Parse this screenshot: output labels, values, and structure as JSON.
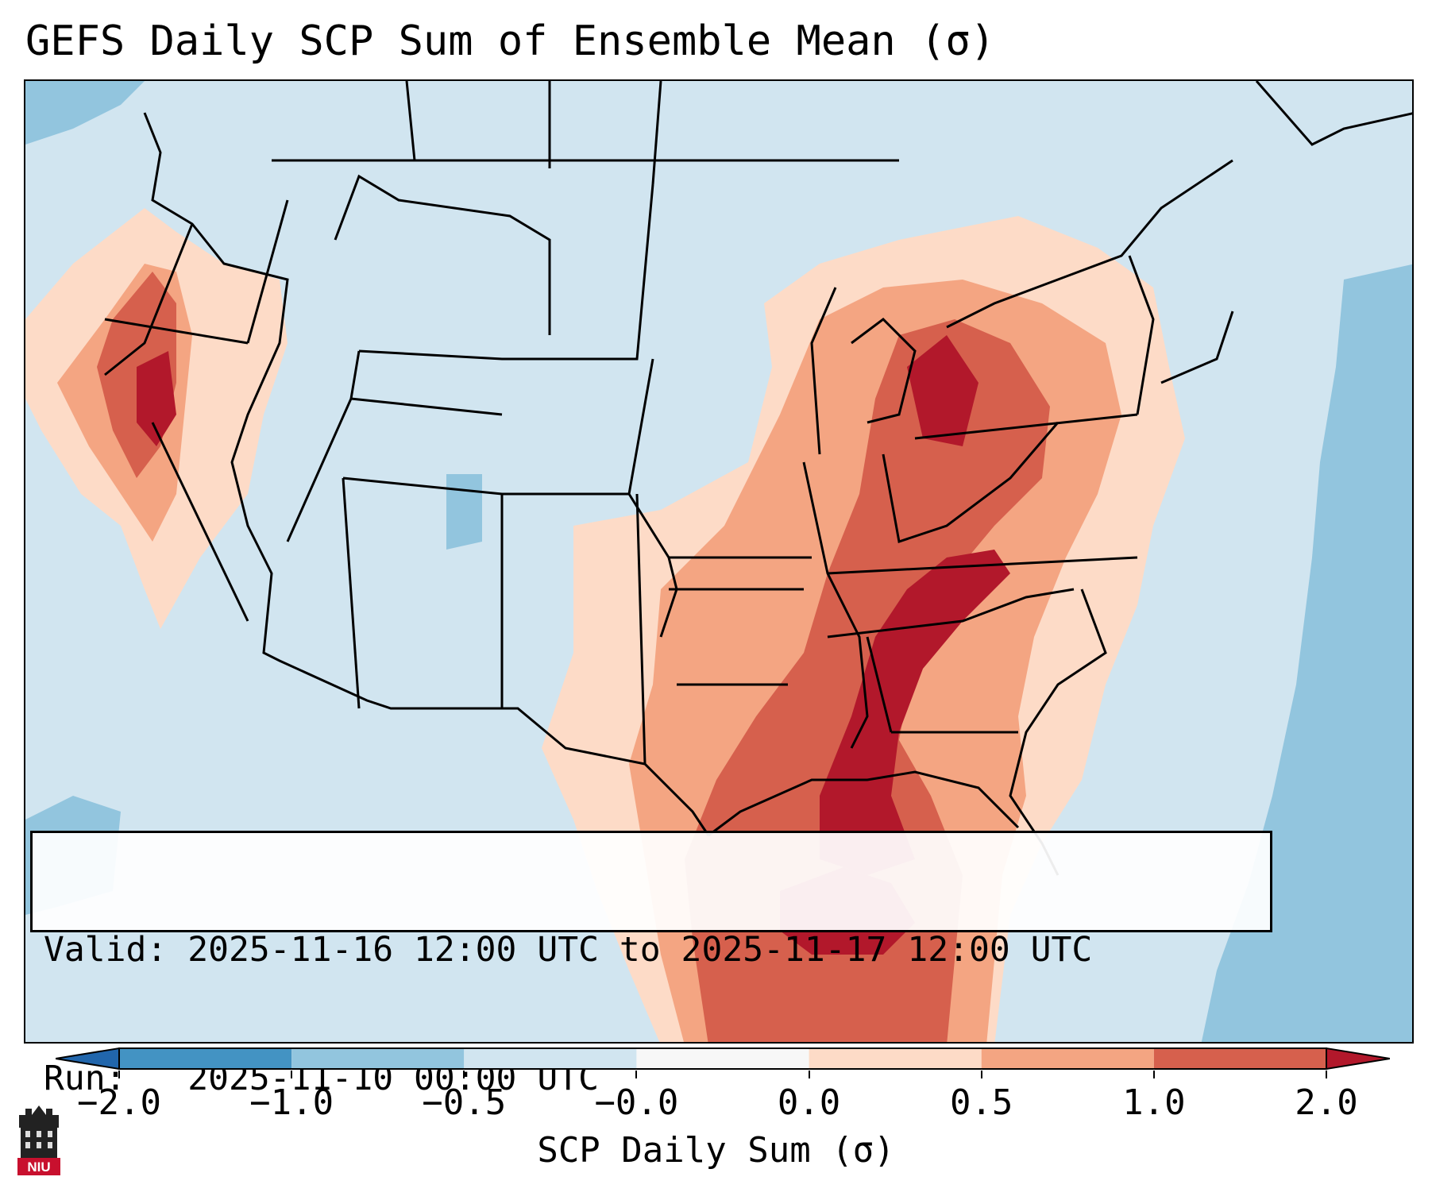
{
  "title": "GEFS Daily SCP Sum of Ensemble Mean (σ)",
  "info": {
    "valid_label": "Valid:",
    "valid_value": "2025-11-16 12:00 UTC to 2025-11-17 12:00 UTC",
    "run_label": "Run:",
    "run_value": "2025-11-10 00:00 UTC"
  },
  "colorbar": {
    "label": "SCP Daily Sum (σ)",
    "ticks": [
      "−2.0",
      "−1.0",
      "−0.5",
      "−0.0",
      "0.0",
      "0.5",
      "1.0",
      "2.0"
    ],
    "colors": [
      "#2166ac",
      "#4393c3",
      "#92c5de",
      "#d1e5f0",
      "#f7f7f7",
      "#fddbc7",
      "#f4a582",
      "#d6604d",
      "#b2182b"
    ]
  },
  "map": {
    "region": "Continental United States",
    "dominant_field_color": "#d1e5f0",
    "ocean_low_color": "#92c5de",
    "high_anomaly_color": "#b2182b"
  },
  "logo": {
    "text": "NIU",
    "color": "#c8102e"
  }
}
